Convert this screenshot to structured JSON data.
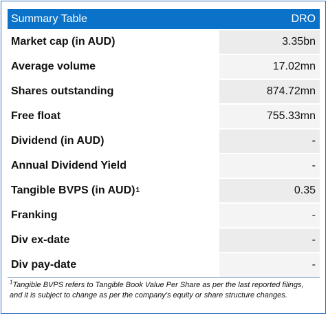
{
  "table": {
    "title": "Summary Table",
    "ticker": "DRO",
    "rows": [
      {
        "label": "Market cap (in AUD)",
        "sup": "",
        "value": "3.35bn"
      },
      {
        "label": "Average volume",
        "sup": "",
        "value": "17.02mn"
      },
      {
        "label": "Shares outstanding",
        "sup": "",
        "value": "874.72mn"
      },
      {
        "label": "Free float",
        "sup": "",
        "value": "755.33mn"
      },
      {
        "label": "Dividend (in AUD)",
        "sup": "",
        "value": "-"
      },
      {
        "label": "Annual Dividend Yield",
        "sup": "",
        "value": "-"
      },
      {
        "label": "Tangible BVPS (in AUD)",
        "sup": "1",
        "value": "0.35"
      },
      {
        "label": "Franking",
        "sup": "",
        "value": "-"
      },
      {
        "label": "Div ex-date",
        "sup": "",
        "value": "-"
      },
      {
        "label": "Div pay-date",
        "sup": "",
        "value": "-"
      }
    ]
  },
  "footnote": {
    "marker": "1",
    "line1": "Tangible BVPS refers to Tangible Book Value Per Share as per the last reported filings,",
    "line2": "and it is subject to change as per the company's equity or share structure changes."
  },
  "colors": {
    "header_bg": "#0b72c9",
    "border": "#2a6cc0",
    "value_bg": "#ececec"
  }
}
